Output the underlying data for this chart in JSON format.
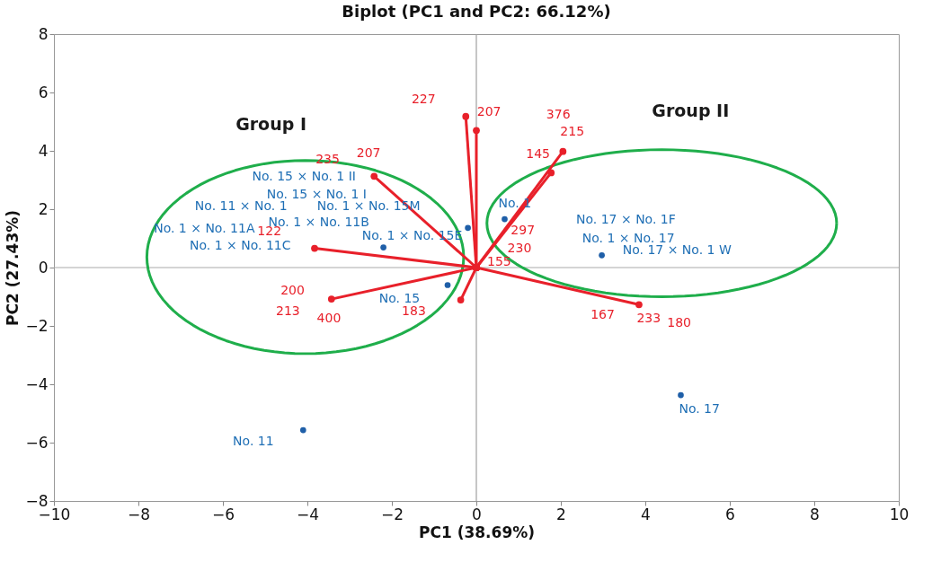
{
  "chart_data": {
    "type": "scatter",
    "title": "Biplot (PC1 and PC2: 66.12%)",
    "xlabel": "PC1 (38.69%)",
    "ylabel": "PC2 (27.43%)",
    "xlim": [
      -10,
      10
    ],
    "xticks": [
      -10,
      -8,
      -6,
      -4,
      -2,
      0,
      2,
      4,
      6,
      8,
      10
    ],
    "ylim": [
      -8,
      8
    ],
    "yticks": [
      -8,
      -6,
      -4,
      -2,
      0,
      2,
      4,
      6,
      8
    ],
    "grid": false,
    "ref_lines": [
      {
        "axis": "x",
        "value": 0,
        "color": "#a0a0a0"
      },
      {
        "axis": "y",
        "value": 0,
        "color": "#aaaaaa"
      }
    ],
    "series": [
      {
        "color": "#1f5fa8",
        "marker": "circle",
        "x": [
          -0.2,
          -2.2,
          0.67,
          2.97,
          -0.68,
          4.84,
          -4.1
        ],
        "values": [
          1.36,
          0.69,
          1.66,
          0.42,
          -0.6,
          -4.37,
          -5.57
        ]
      },
      {
        "type": "line",
        "color": "#e8202a",
        "marker": "circle",
        "x": [
          0,
          -0.25
        ],
        "values": [
          0,
          5.18
        ]
      },
      {
        "type": "line",
        "color": "#e8202a",
        "marker": "circle",
        "x": [
          0,
          0.0
        ],
        "values": [
          0,
          4.7
        ]
      },
      {
        "type": "line",
        "color": "#e8202a",
        "marker": "circle",
        "x": [
          0,
          2.05
        ],
        "values": [
          0,
          3.98
        ]
      },
      {
        "type": "line",
        "color": "#e8202a",
        "marker": "circle",
        "x": [
          0,
          1.77
        ],
        "values": [
          0,
          3.25
        ]
      },
      {
        "type": "line",
        "color": "#e8202a",
        "marker": "circle",
        "x": [
          0,
          -2.42
        ],
        "values": [
          0,
          3.13
        ]
      },
      {
        "type": "line",
        "color": "#e8202a",
        "marker": "circle",
        "x": [
          0,
          -3.83
        ],
        "values": [
          0,
          0.66
        ]
      },
      {
        "type": "line",
        "color": "#e8202a",
        "marker": "circle",
        "x": [
          0,
          -3.43
        ],
        "values": [
          0,
          -1.08
        ]
      },
      {
        "type": "line",
        "color": "#e8202a",
        "marker": "circle",
        "x": [
          0,
          -0.37
        ],
        "values": [
          0,
          -1.11
        ]
      },
      {
        "type": "line",
        "color": "#e8202a",
        "marker": "circle",
        "x": [
          0,
          3.85
        ],
        "values": [
          0,
          -1.27
        ]
      }
    ],
    "annotations": [
      "Group I",
      "Group II",
      "No. 15 × No. 1 II",
      "No. 15 × No. 1 I",
      "No. 11 × No. 1",
      "No. 1 × No. 15M",
      "No. 1 × No. 11B",
      "No. 1 × No. 11A",
      "No. 1 × No. 11C",
      "No. 1 × No. 15E",
      "No. 1",
      "No. 17 × No. 1F",
      "No. 1 × No. 17",
      "No. 17 × No. 1 W",
      "No. 15",
      "No. 17",
      "No. 11",
      "227",
      "207",
      "376",
      "215",
      "145",
      "235",
      "207",
      "122",
      "297",
      "230",
      "155",
      "200",
      "213",
      "400",
      "183",
      "167",
      "233",
      "180"
    ]
  }
}
